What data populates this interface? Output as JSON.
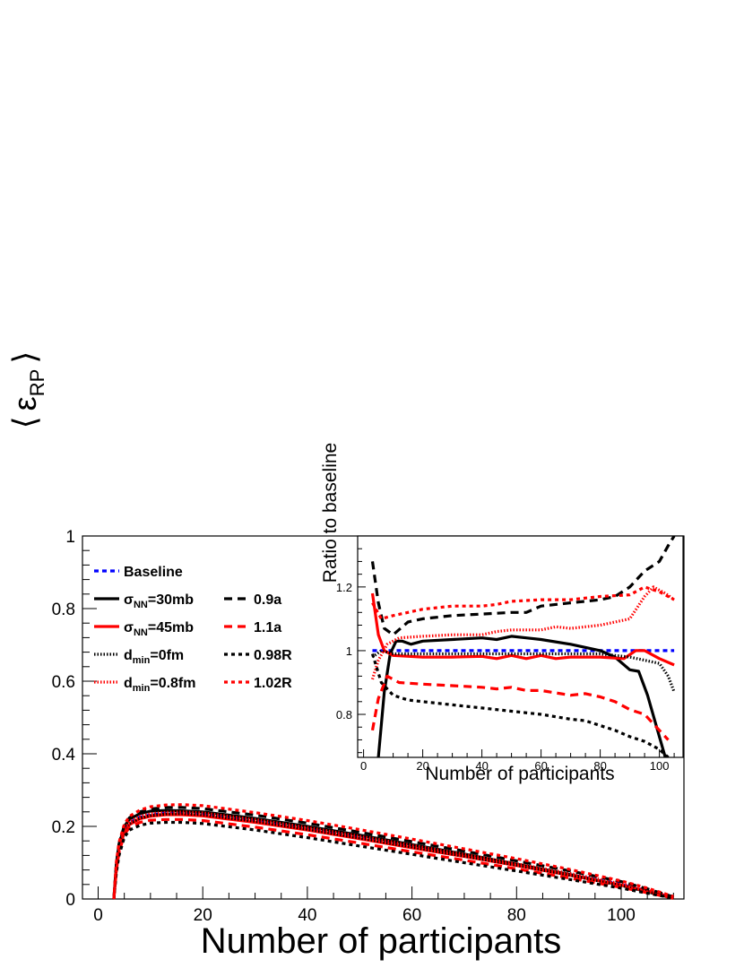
{
  "main": {
    "xlabel": "Number of participants",
    "ylabel": {
      "left_bracket": "⟨",
      "symbol": "ε",
      "sub": "RP",
      "right_bracket": "⟩"
    },
    "xlim": [
      -3,
      112
    ],
    "ylim": [
      0,
      1
    ],
    "xticks": [
      "0",
      "20",
      "40",
      "60",
      "80",
      "100"
    ],
    "yticks": [
      "0",
      "0.2",
      "0.4",
      "0.6",
      "0.8",
      "1"
    ]
  },
  "inset": {
    "xlabel": "Number of participants",
    "ylabel": "Ratio to baseline",
    "xlim": [
      -2,
      108
    ],
    "ylim": [
      0.665,
      1.36
    ],
    "xticks": [
      "0",
      "20",
      "40",
      "60",
      "80",
      "100"
    ],
    "yticks": [
      "0.8",
      "1",
      "1.2"
    ]
  },
  "legend": [
    {
      "id": "baseline",
      "label": "Baseline",
      "color": "#0000ff",
      "dash": "5,4"
    },
    {
      "id": "s30",
      "label": "σ",
      "sub": "NN",
      "suffix": "=30mb",
      "color": "#000000",
      "dash": ""
    },
    {
      "id": "s45",
      "label": "σ",
      "sub": "NN",
      "suffix": "=45mb",
      "color": "#ff0000",
      "dash": ""
    },
    {
      "id": "d0",
      "label": "d",
      "sub": "min",
      "suffix": "=0fm",
      "color": "#000000",
      "dash": "1.5,2"
    },
    {
      "id": "d08",
      "label": "d",
      "sub": "min",
      "suffix": "=0.8fm",
      "color": "#ff0000",
      "dash": "1.5,2"
    },
    {
      "id": "a09",
      "label": "0.9a",
      "color": "#000000",
      "dash": "9,6"
    },
    {
      "id": "a11",
      "label": "1.1a",
      "color": "#ff0000",
      "dash": "9,6"
    },
    {
      "id": "r098",
      "label": "0.98R",
      "color": "#000000",
      "dash": "4,4"
    },
    {
      "id": "r102",
      "label": "1.02R",
      "color": "#ff0000",
      "dash": "4,4"
    }
  ],
  "chart_data": [
    {
      "type": "line",
      "title": "",
      "xlabel": "Number of participants",
      "ylabel": "⟨ε_RP⟩",
      "xlim": [
        -3,
        112
      ],
      "ylim": [
        0,
        1
      ],
      "x": [
        3,
        3.5,
        4,
        5,
        6,
        8,
        10,
        13,
        16,
        20,
        30,
        40,
        50,
        60,
        70,
        80,
        90,
        100,
        105,
        110
      ],
      "series": [
        {
          "name": "Baseline",
          "color": "#0000ff",
          "dash": "5,4",
          "values": [
            0.0,
            0.09,
            0.14,
            0.19,
            0.21,
            0.225,
            0.232,
            0.236,
            0.237,
            0.234,
            0.216,
            0.194,
            0.17,
            0.145,
            0.12,
            0.094,
            0.068,
            0.04,
            0.022,
            0.004
          ]
        },
        {
          "name": "σNN=30mb",
          "color": "#000000",
          "dash": "",
          "values": [
            0.0,
            0.1,
            0.15,
            0.2,
            0.22,
            0.235,
            0.242,
            0.244,
            0.243,
            0.24,
            0.222,
            0.2,
            0.176,
            0.15,
            0.124,
            0.096,
            0.068,
            0.038,
            0.02,
            0.002
          ]
        },
        {
          "name": "σNN=45mb",
          "color": "#ff0000",
          "dash": "",
          "values": [
            0.0,
            0.085,
            0.135,
            0.185,
            0.205,
            0.221,
            0.228,
            0.232,
            0.232,
            0.229,
            0.211,
            0.19,
            0.166,
            0.141,
            0.117,
            0.092,
            0.066,
            0.038,
            0.021,
            0.003
          ]
        },
        {
          "name": "dmin=0fm",
          "color": "#000000",
          "dash": "1.5,2",
          "values": [
            0.0,
            0.088,
            0.138,
            0.188,
            0.208,
            0.223,
            0.23,
            0.234,
            0.235,
            0.232,
            0.214,
            0.192,
            0.168,
            0.143,
            0.118,
            0.093,
            0.066,
            0.037,
            0.02,
            0.003
          ]
        },
        {
          "name": "dmin=0.8fm",
          "color": "#ff0000",
          "dash": "1.5,2",
          "values": [
            0.0,
            0.092,
            0.142,
            0.192,
            0.213,
            0.228,
            0.235,
            0.239,
            0.24,
            0.237,
            0.219,
            0.197,
            0.173,
            0.148,
            0.123,
            0.097,
            0.071,
            0.042,
            0.024,
            0.005
          ]
        },
        {
          "name": "0.9a",
          "color": "#000000",
          "dash": "9,6",
          "values": [
            0.0,
            0.1,
            0.152,
            0.202,
            0.224,
            0.24,
            0.248,
            0.252,
            0.252,
            0.249,
            0.231,
            0.209,
            0.184,
            0.158,
            0.132,
            0.105,
            0.078,
            0.048,
            0.028,
            0.006
          ]
        },
        {
          "name": "1.1a",
          "color": "#ff0000",
          "dash": "9,6",
          "values": [
            0.0,
            0.08,
            0.128,
            0.178,
            0.197,
            0.211,
            0.217,
            0.219,
            0.219,
            0.216,
            0.198,
            0.177,
            0.154,
            0.13,
            0.107,
            0.083,
            0.058,
            0.032,
            0.017,
            0.002
          ]
        },
        {
          "name": "0.98R",
          "color": "#000000",
          "dash": "4,4",
          "values": [
            0.0,
            0.074,
            0.12,
            0.17,
            0.19,
            0.203,
            0.209,
            0.211,
            0.211,
            0.208,
            0.19,
            0.169,
            0.146,
            0.123,
            0.1,
            0.077,
            0.054,
            0.03,
            0.016,
            0.002
          ]
        },
        {
          "name": "1.02R",
          "color": "#ff0000",
          "dash": "4,4",
          "values": [
            0.0,
            0.104,
            0.156,
            0.206,
            0.228,
            0.245,
            0.254,
            0.259,
            0.26,
            0.257,
            0.238,
            0.216,
            0.191,
            0.165,
            0.138,
            0.111,
            0.082,
            0.05,
            0.03,
            0.007
          ]
        }
      ]
    },
    {
      "type": "line",
      "title": "",
      "xlabel": "Number of participants",
      "ylabel": "Ratio to baseline",
      "xlim": [
        -2,
        108
      ],
      "ylim": [
        0.665,
        1.36
      ],
      "series": [
        {
          "name": "Baseline",
          "color": "#0000ff",
          "dash": "5,4",
          "points": [
            [
              3,
              1.0
            ],
            [
              105,
              1.0
            ]
          ]
        },
        {
          "name": "σNN=30mb",
          "color": "#000000",
          "dash": "",
          "points": [
            [
              5,
              0.665
            ],
            [
              7,
              0.87
            ],
            [
              9,
              0.99
            ],
            [
              11,
              1.03
            ],
            [
              13,
              1.03
            ],
            [
              16,
              1.02
            ],
            [
              20,
              1.03
            ],
            [
              30,
              1.035
            ],
            [
              40,
              1.04
            ],
            [
              45,
              1.035
            ],
            [
              50,
              1.045
            ],
            [
              55,
              1.04
            ],
            [
              60,
              1.035
            ],
            [
              70,
              1.02
            ],
            [
              80,
              1.0
            ],
            [
              85,
              0.98
            ],
            [
              90,
              0.94
            ],
            [
              93,
              0.935
            ],
            [
              96,
              0.86
            ],
            [
              100,
              0.73
            ],
            [
              102,
              0.665
            ]
          ]
        },
        {
          "name": "σNN=45mb",
          "color": "#ff0000",
          "dash": "",
          "points": [
            [
              3,
              1.18
            ],
            [
              5,
              1.05
            ],
            [
              7,
              1.0
            ],
            [
              10,
              0.985
            ],
            [
              20,
              0.98
            ],
            [
              30,
              0.98
            ],
            [
              40,
              0.982
            ],
            [
              45,
              0.975
            ],
            [
              50,
              0.985
            ],
            [
              55,
              0.975
            ],
            [
              60,
              0.985
            ],
            [
              65,
              0.975
            ],
            [
              70,
              0.98
            ],
            [
              80,
              0.98
            ],
            [
              88,
              0.975
            ],
            [
              92,
              1.0
            ],
            [
              95,
              1.0
            ],
            [
              100,
              0.975
            ],
            [
              105,
              0.955
            ]
          ]
        },
        {
          "name": "dmin=0fm",
          "color": "#000000",
          "dash": "1.5,2",
          "points": [
            [
              3,
              0.98
            ],
            [
              6,
              1.0
            ],
            [
              10,
              0.99
            ],
            [
              20,
              0.99
            ],
            [
              30,
              0.99
            ],
            [
              40,
              0.99
            ],
            [
              50,
              0.99
            ],
            [
              60,
              0.99
            ],
            [
              70,
              0.99
            ],
            [
              80,
              0.99
            ],
            [
              90,
              0.98
            ],
            [
              95,
              0.97
            ],
            [
              100,
              0.96
            ],
            [
              103,
              0.92
            ],
            [
              105,
              0.87
            ]
          ]
        },
        {
          "name": "dmin=0.8fm",
          "color": "#ff0000",
          "dash": "1.5,2",
          "points": [
            [
              3,
              0.91
            ],
            [
              5,
              0.97
            ],
            [
              8,
              1.02
            ],
            [
              12,
              1.04
            ],
            [
              20,
              1.045
            ],
            [
              30,
              1.05
            ],
            [
              40,
              1.05
            ],
            [
              45,
              1.06
            ],
            [
              50,
              1.065
            ],
            [
              60,
              1.065
            ],
            [
              65,
              1.075
            ],
            [
              70,
              1.07
            ],
            [
              80,
              1.08
            ],
            [
              85,
              1.09
            ],
            [
              90,
              1.1
            ],
            [
              95,
              1.17
            ],
            [
              98,
              1.2
            ],
            [
              102,
              1.18
            ],
            [
              105,
              1.16
            ]
          ]
        },
        {
          "name": "0.9a",
          "color": "#000000",
          "dash": "9,6",
          "points": [
            [
              3,
              1.28
            ],
            [
              5,
              1.15
            ],
            [
              7,
              1.07
            ],
            [
              10,
              1.05
            ],
            [
              15,
              1.09
            ],
            [
              20,
              1.1
            ],
            [
              30,
              1.11
            ],
            [
              40,
              1.115
            ],
            [
              50,
              1.12
            ],
            [
              55,
              1.12
            ],
            [
              60,
              1.14
            ],
            [
              70,
              1.15
            ],
            [
              80,
              1.16
            ],
            [
              85,
              1.17
            ],
            [
              90,
              1.2
            ],
            [
              95,
              1.25
            ],
            [
              100,
              1.28
            ],
            [
              103,
              1.33
            ],
            [
              105,
              1.36
            ]
          ]
        },
        {
          "name": "1.1a",
          "color": "#ff0000",
          "dash": "9,6",
          "points": [
            [
              3,
              0.75
            ],
            [
              5,
              0.85
            ],
            [
              8,
              0.92
            ],
            [
              12,
              0.9
            ],
            [
              20,
              0.895
            ],
            [
              30,
              0.89
            ],
            [
              40,
              0.885
            ],
            [
              45,
              0.88
            ],
            [
              50,
              0.885
            ],
            [
              55,
              0.875
            ],
            [
              60,
              0.875
            ],
            [
              70,
              0.86
            ],
            [
              75,
              0.865
            ],
            [
              80,
              0.855
            ],
            [
              85,
              0.84
            ],
            [
              90,
              0.815
            ],
            [
              95,
              0.8
            ],
            [
              100,
              0.75
            ],
            [
              103,
              0.72
            ]
          ]
        },
        {
          "name": "0.98R",
          "color": "#000000",
          "dash": "4,4",
          "points": [
            [
              3,
              0.99
            ],
            [
              6,
              0.9
            ],
            [
              10,
              0.86
            ],
            [
              15,
              0.845
            ],
            [
              20,
              0.84
            ],
            [
              30,
              0.83
            ],
            [
              40,
              0.82
            ],
            [
              50,
              0.81
            ],
            [
              60,
              0.8
            ],
            [
              70,
              0.785
            ],
            [
              75,
              0.78
            ],
            [
              80,
              0.765
            ],
            [
              85,
              0.75
            ],
            [
              90,
              0.73
            ],
            [
              95,
              0.715
            ],
            [
              100,
              0.69
            ],
            [
              103,
              0.665
            ]
          ]
        },
        {
          "name": "1.02R",
          "color": "#ff0000",
          "dash": "4,4",
          "points": [
            [
              3,
              1.15
            ],
            [
              6,
              1.1
            ],
            [
              10,
              1.11
            ],
            [
              15,
              1.12
            ],
            [
              20,
              1.13
            ],
            [
              30,
              1.14
            ],
            [
              40,
              1.14
            ],
            [
              45,
              1.145
            ],
            [
              50,
              1.155
            ],
            [
              60,
              1.16
            ],
            [
              70,
              1.16
            ],
            [
              80,
              1.17
            ],
            [
              90,
              1.175
            ],
            [
              95,
              1.2
            ],
            [
              100,
              1.185
            ],
            [
              105,
              1.16
            ]
          ]
        }
      ]
    }
  ]
}
